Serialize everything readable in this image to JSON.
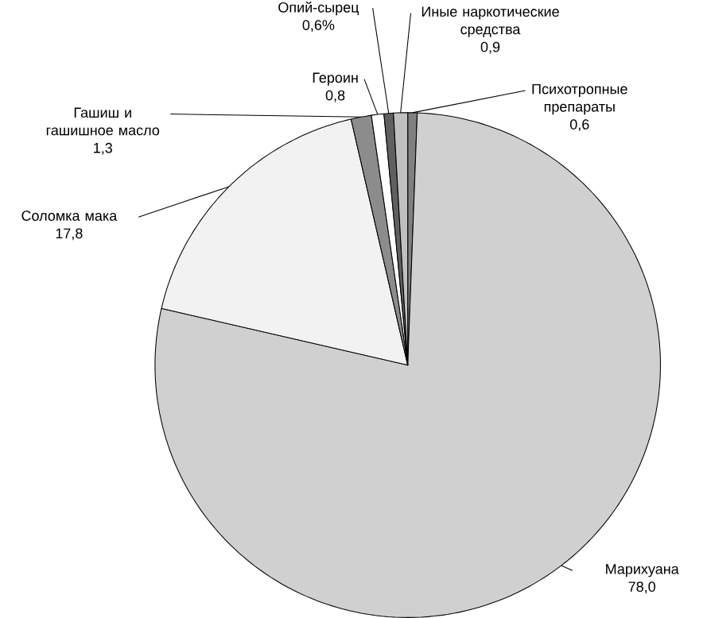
{
  "chart_data": {
    "type": "pie",
    "categories": [
      "Психотропные препараты",
      "Марихуана",
      "Соломка мака",
      "Гашиш и гашишное масло",
      "Героин",
      "Опий-сырец",
      "Иные наркотические средства"
    ],
    "values": [
      0.6,
      78.0,
      17.8,
      1.3,
      0.8,
      0.6,
      0.9
    ],
    "value_labels": [
      "0,6",
      "78,0",
      "17,8",
      "1,3",
      "0,8",
      "0,6%",
      "0,9"
    ],
    "colors": [
      "#808080",
      "#d0d0d0",
      "#f2f2f2",
      "#8c8c8c",
      "#ffffff",
      "#606060",
      "#c0c0c0"
    ]
  }
}
